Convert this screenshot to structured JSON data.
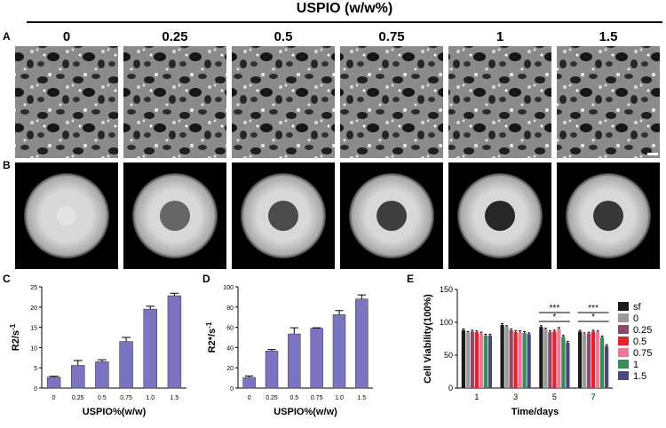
{
  "header": {
    "title": "USPIO (w/w%)"
  },
  "panel_labels": [
    "A",
    "B",
    "C",
    "D",
    "E"
  ],
  "columns": [
    "0",
    "0.25",
    "0.5",
    "0.75",
    "1",
    "1.5"
  ],
  "chart_data": [
    {
      "type": "bar",
      "categories": [
        "0",
        "0.25",
        "0.5",
        "0.75",
        "1.0",
        "1.5"
      ],
      "values": [
        2.7,
        5.6,
        6.5,
        11.5,
        19.5,
        22.8
      ],
      "errors": [
        0.2,
        1.2,
        0.5,
        1.0,
        0.7,
        0.6
      ],
      "color": "#7b74c0",
      "ylim": [
        0,
        25
      ],
      "yticks": [
        0,
        5,
        10,
        15,
        20,
        25
      ],
      "y_label": "R2/s",
      "y_label_sup": "-1",
      "x_label": "USPIO%(w/w)"
    },
    {
      "type": "bar",
      "categories": [
        "0",
        "0.25",
        "0.5",
        "0.75",
        "1.0",
        "1.5"
      ],
      "values": [
        10.5,
        36.5,
        53.5,
        59,
        72.5,
        88
      ],
      "errors": [
        1.5,
        1.5,
        6,
        0.5,
        4,
        4
      ],
      "color": "#7b74c0",
      "ylim": [
        0,
        100
      ],
      "yticks": [
        0,
        20,
        40,
        60,
        80,
        100
      ],
      "y_label": "R2*/s",
      "y_label_sup": "-1",
      "x_label": "USPIO%(w/w)"
    },
    {
      "type": "bar",
      "categories": [
        "1",
        "3",
        "5",
        "7"
      ],
      "series": [
        {
          "name": "sf",
          "color": "#1a1a1a",
          "values": [
            88,
            96,
            93,
            86
          ],
          "errors": [
            2,
            2,
            2,
            2
          ]
        },
        {
          "name": "0",
          "color": "#9a9a9a",
          "values": [
            84,
            93,
            89,
            82
          ],
          "errors": [
            2,
            2,
            2,
            2
          ]
        },
        {
          "name": "0.25",
          "color": "#8a4a6a",
          "values": [
            86,
            88,
            85,
            83
          ],
          "errors": [
            2,
            2,
            2,
            2
          ]
        },
        {
          "name": "0.5",
          "color": "#e8202a",
          "values": [
            85,
            85,
            86,
            86
          ],
          "errors": [
            2,
            2,
            2,
            2
          ]
        },
        {
          "name": "0.75",
          "color": "#f07898",
          "values": [
            83,
            85,
            90,
            85
          ],
          "errors": [
            2,
            2,
            2,
            2
          ]
        },
        {
          "name": "1",
          "color": "#3a8a5a",
          "values": [
            80,
            84,
            78,
            77
          ],
          "errors": [
            2,
            2,
            2,
            2
          ]
        },
        {
          "name": "1.5",
          "color": "#4a4a7a",
          "values": [
            80,
            82,
            69,
            64
          ],
          "errors": [
            2,
            2,
            2,
            2
          ]
        }
      ],
      "ylim": [
        0,
        150
      ],
      "yticks": [
        0,
        50,
        100,
        150
      ],
      "y_label": "Cell Viability(100%)",
      "x_label": "Time/days",
      "annotations": [
        "***",
        "*",
        "***",
        "*"
      ]
    }
  ]
}
